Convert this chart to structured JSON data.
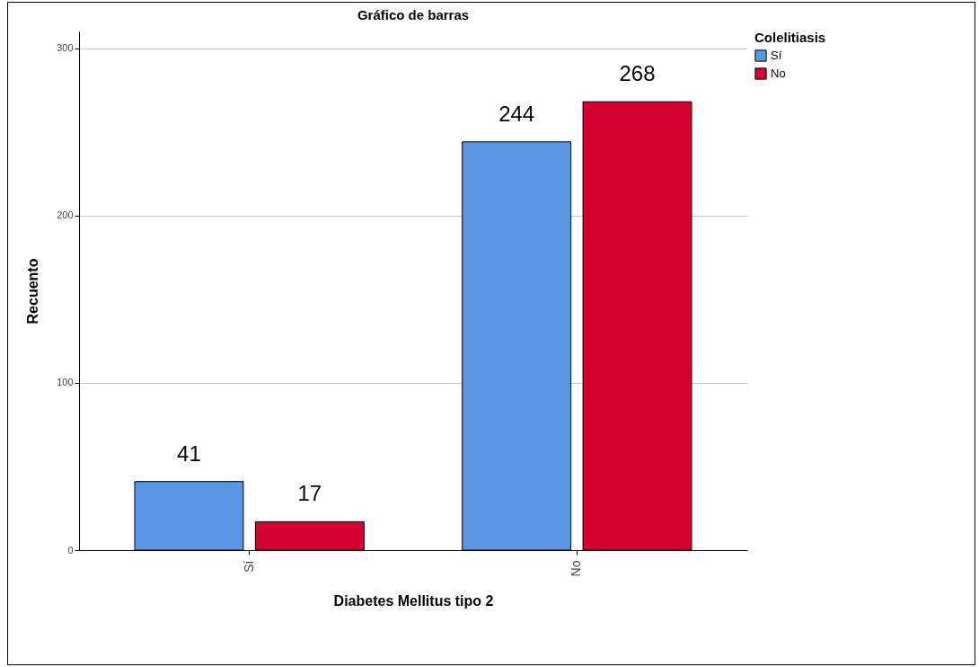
{
  "chart_data": {
    "type": "bar",
    "title": "Gráfico de barras",
    "xlabel": "Diabetes Mellitus tipo 2",
    "ylabel": "Recuento",
    "legend_title": "Colelitiasis",
    "categories": [
      "Sí",
      "No"
    ],
    "series": [
      {
        "name": "Sí",
        "color": "#5a96e3",
        "values": [
          41,
          244
        ]
      },
      {
        "name": "No",
        "color": "#d50032",
        "values": [
          17,
          268
        ]
      }
    ],
    "ylim": [
      0,
      310
    ],
    "yticks": [
      0,
      100,
      200,
      300
    ],
    "grid": "y",
    "legend": "top right",
    "data_labels": true
  }
}
